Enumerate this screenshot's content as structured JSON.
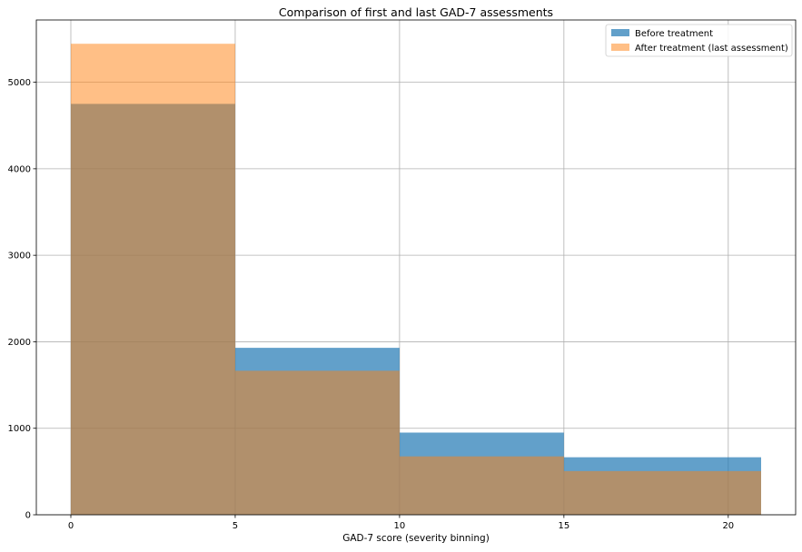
{
  "chart_data": {
    "type": "histogram",
    "title": "Comparison of first and last GAD-7 assessments",
    "xlabel": "GAD-7 score (severity binning)",
    "ylabel": "",
    "bin_edges": [
      0,
      5,
      10,
      15,
      21
    ],
    "xlim": [
      -1.05,
      22.05
    ],
    "ylim": [
      0,
      5720
    ],
    "xticks": [
      "0",
      "5",
      "10",
      "15",
      "20"
    ],
    "yticks": [
      "0",
      "1000",
      "2000",
      "3000",
      "4000",
      "5000"
    ],
    "grid": true,
    "legend_position": "top-right",
    "series": [
      {
        "name": "Before treatment",
        "values": [
          4750,
          1930,
          950,
          665
        ],
        "color": "#1f77b4",
        "opacity": 0.7
      },
      {
        "name": "After treatment (last assessment)",
        "values": [
          5445,
          1665,
          675,
          505
        ],
        "color": "#ff7f0e",
        "opacity": 0.5
      }
    ]
  }
}
